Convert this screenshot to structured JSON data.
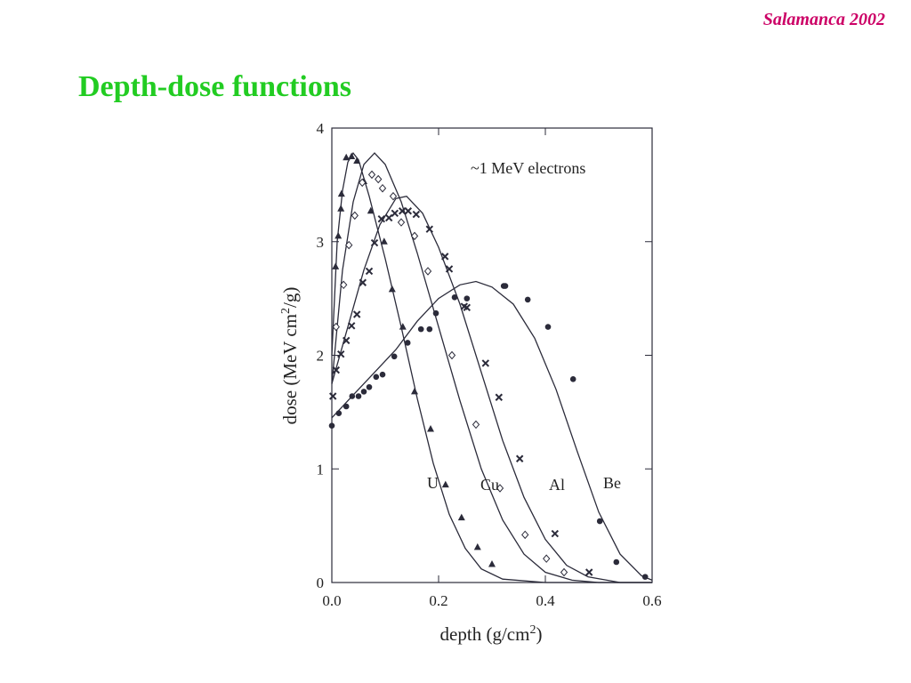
{
  "header": {
    "note": "Salamanca 2002",
    "title": "Depth-dose functions"
  },
  "chart_data": {
    "type": "line",
    "annotation": "~1 MeV electrons",
    "xlabel": [
      "depth (g/cm",
      "2",
      ")"
    ],
    "ylabel": [
      "dose (MeV cm",
      "2",
      "/g)"
    ],
    "xlim": [
      0,
      0.6
    ],
    "ylim": [
      0,
      4
    ],
    "xticks": [
      {
        "value": 0,
        "label": "0.0"
      },
      0.2,
      0.4,
      0.6
    ],
    "yticks": [
      0,
      1,
      2,
      3,
      4
    ],
    "color": "#2b2b3a",
    "series": [
      {
        "name": "U",
        "marker": "triangle",
        "x": [
          0.007,
          0.012,
          0.017,
          0.018,
          0.027,
          0.037,
          0.047,
          0.06,
          0.073,
          0.098,
          0.113,
          0.133,
          0.155,
          0.185,
          0.213,
          0.243,
          0.273,
          0.3
        ],
        "values": [
          2.78,
          3.05,
          3.29,
          3.42,
          3.74,
          3.75,
          3.71,
          3.53,
          3.27,
          3.0,
          2.58,
          2.25,
          1.68,
          1.35,
          0.86,
          0.57,
          0.31,
          0.16
        ],
        "curve_x": [
          0,
          0.01,
          0.02,
          0.03,
          0.04,
          0.05,
          0.07,
          0.1,
          0.13,
          0.16,
          0.19,
          0.22,
          0.25,
          0.28,
          0.32,
          0.4,
          0.5,
          0.6
        ],
        "curve_values": [
          2.0,
          3.0,
          3.45,
          3.7,
          3.78,
          3.72,
          3.4,
          2.85,
          2.25,
          1.62,
          1.05,
          0.6,
          0.3,
          0.12,
          0.03,
          0,
          0,
          0
        ]
      },
      {
        "name": "Cu",
        "marker": "diamond",
        "x": [
          0.008,
          0.022,
          0.032,
          0.043,
          0.057,
          0.075,
          0.087,
          0.095,
          0.115,
          0.13,
          0.155,
          0.18,
          0.225,
          0.27,
          0.315,
          0.362,
          0.402,
          0.435
        ],
        "values": [
          2.25,
          2.62,
          2.97,
          3.23,
          3.52,
          3.59,
          3.55,
          3.47,
          3.4,
          3.17,
          3.05,
          2.74,
          2.0,
          1.39,
          0.83,
          0.42,
          0.21,
          0.09
        ],
        "curve_x": [
          0,
          0.02,
          0.04,
          0.06,
          0.08,
          0.1,
          0.13,
          0.16,
          0.2,
          0.24,
          0.28,
          0.32,
          0.36,
          0.4,
          0.45,
          0.5,
          0.6
        ],
        "curve_values": [
          1.75,
          2.75,
          3.35,
          3.68,
          3.78,
          3.68,
          3.35,
          2.9,
          2.25,
          1.6,
          1.0,
          0.55,
          0.25,
          0.09,
          0.02,
          0,
          0
        ]
      },
      {
        "name": "Al",
        "marker": "cross",
        "x": [
          0.002,
          0.008,
          0.017,
          0.027,
          0.037,
          0.047,
          0.058,
          0.07,
          0.08,
          0.093,
          0.107,
          0.118,
          0.132,
          0.143,
          0.158,
          0.183,
          0.212,
          0.22,
          0.248,
          0.253,
          0.288,
          0.313,
          0.352,
          0.418,
          0.482
        ],
        "values": [
          1.64,
          1.87,
          2.01,
          2.13,
          2.26,
          2.36,
          2.64,
          2.74,
          2.99,
          3.2,
          3.21,
          3.25,
          3.27,
          3.27,
          3.24,
          3.11,
          2.87,
          2.76,
          2.43,
          2.42,
          1.93,
          1.63,
          1.09,
          0.43,
          0.09
        ],
        "curve_x": [
          0,
          0.03,
          0.06,
          0.09,
          0.12,
          0.14,
          0.17,
          0.2,
          0.24,
          0.28,
          0.32,
          0.36,
          0.4,
          0.44,
          0.48,
          0.54,
          0.6
        ],
        "curve_values": [
          1.75,
          2.25,
          2.75,
          3.15,
          3.38,
          3.4,
          3.25,
          2.95,
          2.45,
          1.85,
          1.25,
          0.75,
          0.38,
          0.15,
          0.05,
          0,
          0
        ]
      },
      {
        "name": "Be",
        "marker": "circle",
        "x": [
          0,
          0.013,
          0.027,
          0.038,
          0.05,
          0.06,
          0.07,
          0.083,
          0.095,
          0.117,
          0.142,
          0.167,
          0.183,
          0.195,
          0.23,
          0.253,
          0.322,
          0.325,
          0.367,
          0.405,
          0.452,
          0.502,
          0.533,
          0.587
        ],
        "values": [
          1.38,
          1.49,
          1.55,
          1.64,
          1.64,
          1.68,
          1.72,
          1.81,
          1.83,
          1.99,
          2.11,
          2.23,
          2.23,
          2.37,
          2.51,
          2.5,
          2.61,
          2.61,
          2.49,
          2.25,
          1.79,
          0.54,
          0.18,
          0.05
        ],
        "curve_x": [
          0,
          0.04,
          0.08,
          0.12,
          0.16,
          0.2,
          0.24,
          0.27,
          0.3,
          0.34,
          0.38,
          0.42,
          0.46,
          0.5,
          0.54,
          0.58,
          0.6
        ],
        "curve_values": [
          1.45,
          1.65,
          1.85,
          2.05,
          2.3,
          2.5,
          2.62,
          2.65,
          2.6,
          2.45,
          2.15,
          1.7,
          1.15,
          0.62,
          0.25,
          0.06,
          0.02
        ]
      }
    ]
  }
}
